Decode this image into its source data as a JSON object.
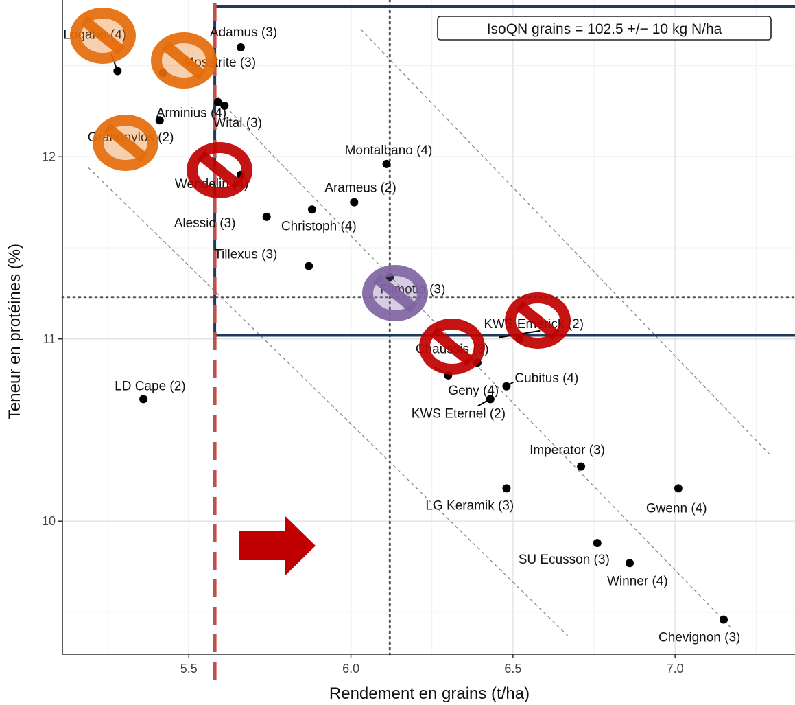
{
  "chart_data": {
    "type": "scatter",
    "title": "",
    "xlabel": "Rendement en grains (t/ha)",
    "ylabel": "Teneur en protéines (%)",
    "xlim": [
      5.11,
      7.37
    ],
    "ylim": [
      9.27,
      12.86
    ],
    "xticks": [
      5.5,
      6.0,
      6.5,
      7.0
    ],
    "yticks": [
      10,
      11,
      12
    ],
    "grid": true,
    "legend_box": "IsoQN grains = 102.5 +/− 10 kg N/ha",
    "reference_lines": {
      "vertical_mean_x": 6.12,
      "horizontal_mean_y": 11.23,
      "threshold_x": 5.58,
      "threshold_y": 11.02
    },
    "iso_lines": [
      {
        "name": "upper",
        "x": [
          6.03,
          7.29
        ],
        "y": [
          12.7,
          10.37
        ]
      },
      {
        "name": "center",
        "x": [
          5.6,
          7.17
        ],
        "y": [
          12.3,
          9.42
        ]
      },
      {
        "name": "lower",
        "x": [
          5.19,
          6.67
        ],
        "y": [
          11.94,
          9.37
        ]
      }
    ],
    "points": [
      {
        "label": "Adamus (3)",
        "x": 5.66,
        "y": 12.6
      },
      {
        "label": "Logano (4)",
        "x": 5.28,
        "y": 12.47
      },
      {
        "label": "Mosstrite (3)",
        "x": 5.42,
        "y": 12.46
      },
      {
        "label": "Arminius (4)",
        "x": 5.59,
        "y": 12.3
      },
      {
        "label": "Wital (3)",
        "x": 5.61,
        "y": 12.28
      },
      {
        "label": "Granonylos (2)",
        "x": 5.41,
        "y": 12.2
      },
      {
        "label": "Montalbano (4)",
        "x": 6.11,
        "y": 11.96
      },
      {
        "label": "Wendelin (4)",
        "x": 5.66,
        "y": 11.9
      },
      {
        "label": "Arameus (2)",
        "x": 6.01,
        "y": 11.75
      },
      {
        "label": "Christoph (4)",
        "x": 5.88,
        "y": 11.71
      },
      {
        "label": "Alessio (3)",
        "x": 5.74,
        "y": 11.67
      },
      {
        "label": "Tillexus (3)",
        "x": 5.87,
        "y": 11.4
      },
      {
        "label": "Filmotio (3)",
        "x": 6.12,
        "y": 11.34
      },
      {
        "label": "KWS Emerick (2)",
        "x": 6.52,
        "y": 11.0
      },
      {
        "label": "Chaussis (3)",
        "x": 6.39,
        "y": 10.87
      },
      {
        "label": "Geny (4)",
        "x": 6.3,
        "y": 10.8
      },
      {
        "label": "Cubitus (4)",
        "x": 6.48,
        "y": 10.74
      },
      {
        "label": "KWS Eternel (2)",
        "x": 6.43,
        "y": 10.67
      },
      {
        "label": "LD Cape (2)",
        "x": 5.36,
        "y": 10.67
      },
      {
        "label": "Imperator (3)",
        "x": 6.71,
        "y": 10.3
      },
      {
        "label": "LG Keramik (3)",
        "x": 6.48,
        "y": 10.18
      },
      {
        "label": "Gwenn (4)",
        "x": 7.01,
        "y": 10.18
      },
      {
        "label": "SU Ecusson (3)",
        "x": 6.76,
        "y": 9.88
      },
      {
        "label": "Winner (4)",
        "x": 6.86,
        "y": 9.77
      },
      {
        "label": "Chevignon (3)",
        "x": 7.15,
        "y": 9.46
      }
    ],
    "colors": {
      "excluded_orange": "#e46c0a",
      "excluded_red": "#c00000",
      "excluded_purple": "#8064a2",
      "threshold_dashed": "#c0504d",
      "frame_navy": "#1f3a5a",
      "arrow": "#c00000"
    },
    "annotations": [
      {
        "type": "no-sign",
        "color": "orange",
        "point": "Logano (4)"
      },
      {
        "type": "no-sign",
        "color": "orange",
        "point": "Mosstrite (3)"
      },
      {
        "type": "no-sign",
        "color": "orange",
        "point": "Granonylos (2)"
      },
      {
        "type": "no-sign",
        "color": "red",
        "point": "Wendelin (4)"
      },
      {
        "type": "no-sign",
        "color": "purple",
        "point": "Filmotio (3)"
      },
      {
        "type": "no-sign",
        "color": "red",
        "point": "KWS Emerick (2)"
      },
      {
        "type": "no-sign",
        "color": "red",
        "point": "Chaussis (3)"
      },
      {
        "type": "arrow",
        "direction": "right",
        "color": "red"
      }
    ]
  }
}
